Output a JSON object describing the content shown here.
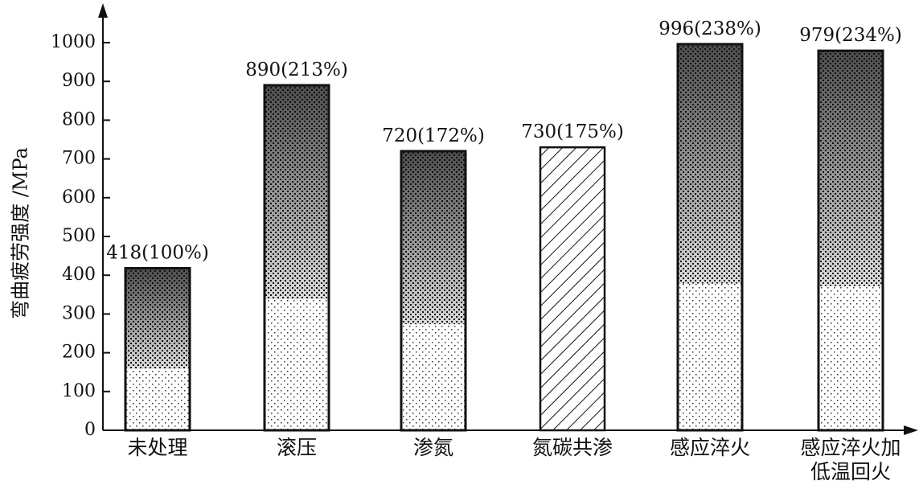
{
  "chart_data": {
    "type": "bar",
    "ylabel": "弯曲疲劳强度 /MPa",
    "xlabel": "",
    "title": "",
    "ylim": [
      0,
      1000
    ],
    "yticks": [
      0,
      100,
      200,
      300,
      400,
      500,
      600,
      700,
      800,
      900,
      1000
    ],
    "grid": false,
    "legend": "none",
    "categories": [
      [
        "未处理"
      ],
      [
        "滚压"
      ],
      [
        "渗氮"
      ],
      [
        "氮碳共渗"
      ],
      [
        "感应淬火"
      ],
      [
        "感应淬火加",
        "低温回火"
      ]
    ],
    "values": [
      418,
      890,
      720,
      730,
      996,
      979
    ],
    "data_labels": [
      "418(100%)",
      "890(213%)",
      "720(172%)",
      "730(175%)",
      "996(238%)",
      "979(234%)"
    ],
    "fills": [
      "speckled",
      "speckled",
      "speckled",
      "hatched",
      "speckled",
      "speckled"
    ],
    "colors": {
      "ink": "#111111",
      "background": "#ffffff"
    }
  }
}
